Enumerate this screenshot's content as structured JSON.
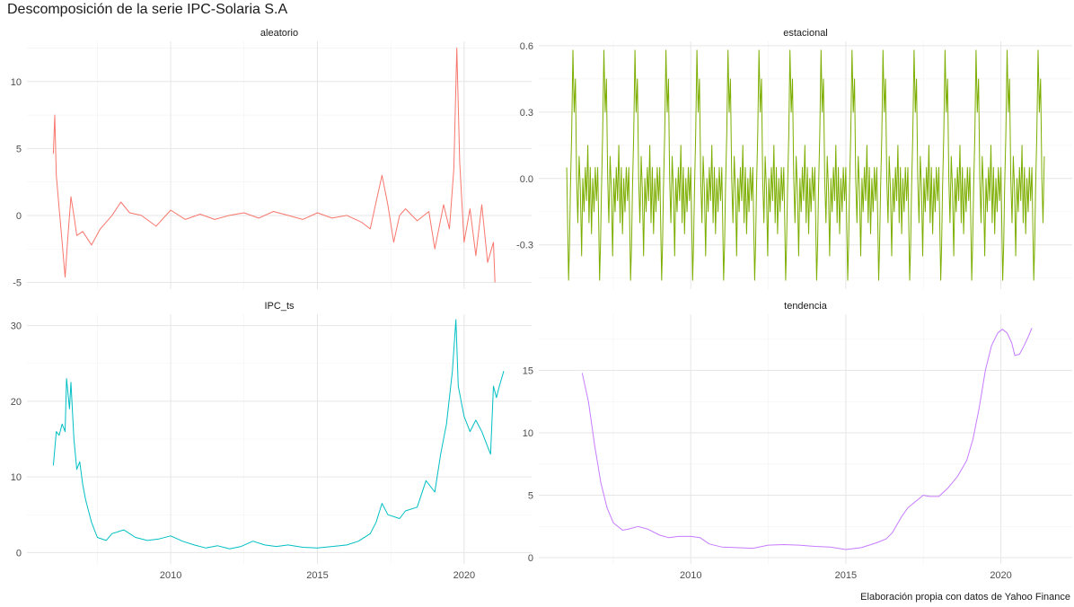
{
  "chart_data": {
    "title": "Descomposición de la serie IPC-Solaria S.A",
    "caption": "Elaboración propia con datos de Yahoo Finance",
    "type": "line",
    "grid": true,
    "x_ticks": [
      "2010",
      "2015",
      "2020"
    ],
    "panels": [
      {
        "name": "aleatorio",
        "color": "#F8766D",
        "ylim": [
          -5.5,
          13
        ],
        "y_ticks": [
          -5,
          0,
          5,
          10
        ],
        "y_tick_labels": [
          "-5",
          "0",
          "5",
          "10"
        ],
        "points": [
          [
            2006.0,
            4.6
          ],
          [
            2006.05,
            7.5
          ],
          [
            2006.1,
            3.0
          ],
          [
            2006.2,
            0.5
          ],
          [
            2006.3,
            -2.0
          ],
          [
            2006.4,
            -4.6
          ],
          [
            2006.5,
            -1.5
          ],
          [
            2006.6,
            1.4
          ],
          [
            2006.7,
            0.0
          ],
          [
            2006.8,
            -1.5
          ],
          [
            2007.0,
            -1.2
          ],
          [
            2007.3,
            -2.2
          ],
          [
            2007.6,
            -1.0
          ],
          [
            2008.0,
            0.0
          ],
          [
            2008.3,
            1.0
          ],
          [
            2008.6,
            0.2
          ],
          [
            2009.0,
            0.0
          ],
          [
            2009.5,
            -0.8
          ],
          [
            2010.0,
            0.4
          ],
          [
            2010.5,
            -0.3
          ],
          [
            2011.0,
            0.1
          ],
          [
            2011.5,
            -0.3
          ],
          [
            2012.0,
            0.0
          ],
          [
            2012.5,
            0.2
          ],
          [
            2013.0,
            -0.2
          ],
          [
            2013.5,
            0.3
          ],
          [
            2014.0,
            0.0
          ],
          [
            2014.5,
            -0.3
          ],
          [
            2015.0,
            0.2
          ],
          [
            2015.5,
            -0.2
          ],
          [
            2016.0,
            0.0
          ],
          [
            2016.5,
            -0.5
          ],
          [
            2016.8,
            -1.0
          ],
          [
            2017.0,
            1.0
          ],
          [
            2017.2,
            3.0
          ],
          [
            2017.4,
            0.8
          ],
          [
            2017.6,
            -2.0
          ],
          [
            2017.8,
            0.0
          ],
          [
            2018.0,
            0.5
          ],
          [
            2018.4,
            -0.4
          ],
          [
            2018.8,
            0.3
          ],
          [
            2019.0,
            -2.5
          ],
          [
            2019.3,
            0.8
          ],
          [
            2019.5,
            -1.0
          ],
          [
            2019.65,
            3.5
          ],
          [
            2019.75,
            12.5
          ],
          [
            2019.85,
            4.0
          ],
          [
            2020.0,
            -2.0
          ],
          [
            2020.2,
            0.5
          ],
          [
            2020.4,
            -3.0
          ],
          [
            2020.6,
            0.8
          ],
          [
            2020.8,
            -3.5
          ],
          [
            2021.0,
            -2.0
          ],
          [
            2021.05,
            -5.0
          ]
        ]
      },
      {
        "name": "estacional",
        "color": "#7CAE00",
        "ylim": [
          -0.5,
          0.62
        ],
        "y_ticks": [
          -0.3,
          0.0,
          0.3,
          0.6
        ],
        "y_tick_labels": [
          "-0.3",
          "0.0",
          "0.3",
          "0.6"
        ],
        "period": 1.0,
        "x_range": [
          2006.0,
          2021.4
        ],
        "cycle_points": [
          [
            0.0,
            0.05
          ],
          [
            0.03,
            -0.2
          ],
          [
            0.06,
            -0.46
          ],
          [
            0.09,
            -0.3
          ],
          [
            0.12,
            -0.05
          ],
          [
            0.16,
            0.2
          ],
          [
            0.2,
            0.58
          ],
          [
            0.24,
            0.3
          ],
          [
            0.28,
            0.45
          ],
          [
            0.32,
            0.0
          ],
          [
            0.36,
            -0.2
          ],
          [
            0.4,
            0.1
          ],
          [
            0.44,
            -0.05
          ],
          [
            0.48,
            -0.35
          ],
          [
            0.52,
            0.0
          ],
          [
            0.56,
            -0.15
          ],
          [
            0.6,
            0.05
          ],
          [
            0.64,
            -0.1
          ],
          [
            0.68,
            0.15
          ],
          [
            0.72,
            -0.2
          ],
          [
            0.76,
            0.05
          ],
          [
            0.8,
            -0.25
          ],
          [
            0.84,
            0.0
          ],
          [
            0.88,
            -0.15
          ],
          [
            0.92,
            0.05
          ],
          [
            0.96,
            -0.1
          ],
          [
            1.0,
            0.05
          ]
        ]
      },
      {
        "name": "IPC_ts",
        "color": "#00BFC4",
        "ylim": [
          -1.5,
          31.5
        ],
        "y_ticks": [
          0,
          10,
          20,
          30
        ],
        "y_tick_labels": [
          "0",
          "10",
          "20",
          "30"
        ],
        "points": [
          [
            2006.0,
            11.5
          ],
          [
            2006.1,
            16.0
          ],
          [
            2006.2,
            15.5
          ],
          [
            2006.3,
            17.0
          ],
          [
            2006.4,
            16.0
          ],
          [
            2006.45,
            23.0
          ],
          [
            2006.55,
            19.0
          ],
          [
            2006.6,
            22.5
          ],
          [
            2006.7,
            15.0
          ],
          [
            2006.8,
            11.0
          ],
          [
            2006.9,
            12.0
          ],
          [
            2007.0,
            9.0
          ],
          [
            2007.1,
            7.0
          ],
          [
            2007.3,
            4.0
          ],
          [
            2007.5,
            2.0
          ],
          [
            2007.8,
            1.6
          ],
          [
            2008.0,
            2.5
          ],
          [
            2008.4,
            3.0
          ],
          [
            2008.8,
            2.0
          ],
          [
            2009.2,
            1.6
          ],
          [
            2009.6,
            1.8
          ],
          [
            2010.0,
            2.2
          ],
          [
            2010.4,
            1.5
          ],
          [
            2010.8,
            1.0
          ],
          [
            2011.2,
            0.6
          ],
          [
            2011.6,
            0.9
          ],
          [
            2012.0,
            0.5
          ],
          [
            2012.4,
            0.8
          ],
          [
            2012.8,
            1.5
          ],
          [
            2013.2,
            1.0
          ],
          [
            2013.6,
            0.8
          ],
          [
            2014.0,
            1.0
          ],
          [
            2014.5,
            0.7
          ],
          [
            2015.0,
            0.6
          ],
          [
            2015.5,
            0.8
          ],
          [
            2016.0,
            1.0
          ],
          [
            2016.4,
            1.5
          ],
          [
            2016.8,
            2.5
          ],
          [
            2017.0,
            4.0
          ],
          [
            2017.2,
            6.5
          ],
          [
            2017.4,
            5.0
          ],
          [
            2017.8,
            4.5
          ],
          [
            2018.0,
            5.5
          ],
          [
            2018.4,
            6.0
          ],
          [
            2018.7,
            9.5
          ],
          [
            2019.0,
            8.0
          ],
          [
            2019.2,
            13.0
          ],
          [
            2019.4,
            17.0
          ],
          [
            2019.6,
            24.0
          ],
          [
            2019.72,
            30.8
          ],
          [
            2019.8,
            22.0
          ],
          [
            2020.0,
            18.0
          ],
          [
            2020.2,
            16.0
          ],
          [
            2020.4,
            17.5
          ],
          [
            2020.6,
            16.0
          ],
          [
            2020.8,
            14.0
          ],
          [
            2020.9,
            13.0
          ],
          [
            2021.0,
            22.0
          ],
          [
            2021.1,
            20.5
          ],
          [
            2021.2,
            22.0
          ],
          [
            2021.35,
            24.0
          ]
        ]
      },
      {
        "name": "tendencia",
        "color": "#C77CFF",
        "ylim": [
          -0.5,
          19.5
        ],
        "y_ticks": [
          0,
          5,
          10,
          15
        ],
        "y_tick_labels": [
          "0",
          "5",
          "10",
          "15"
        ],
        "points": [
          [
            2006.5,
            14.8
          ],
          [
            2006.7,
            12.5
          ],
          [
            2006.9,
            9.0
          ],
          [
            2007.1,
            6.0
          ],
          [
            2007.3,
            4.0
          ],
          [
            2007.5,
            2.8
          ],
          [
            2007.8,
            2.2
          ],
          [
            2008.0,
            2.3
          ],
          [
            2008.3,
            2.5
          ],
          [
            2008.6,
            2.3
          ],
          [
            2009.0,
            1.8
          ],
          [
            2009.3,
            1.6
          ],
          [
            2009.6,
            1.7
          ],
          [
            2010.0,
            1.7
          ],
          [
            2010.3,
            1.6
          ],
          [
            2010.6,
            1.1
          ],
          [
            2011.0,
            0.85
          ],
          [
            2011.5,
            0.8
          ],
          [
            2012.0,
            0.75
          ],
          [
            2012.5,
            1.0
          ],
          [
            2013.0,
            1.05
          ],
          [
            2013.5,
            1.0
          ],
          [
            2014.0,
            0.9
          ],
          [
            2014.5,
            0.85
          ],
          [
            2015.0,
            0.65
          ],
          [
            2015.5,
            0.8
          ],
          [
            2016.0,
            1.2
          ],
          [
            2016.3,
            1.5
          ],
          [
            2016.5,
            2.0
          ],
          [
            2016.8,
            3.3
          ],
          [
            2017.0,
            4.0
          ],
          [
            2017.3,
            4.6
          ],
          [
            2017.5,
            5.0
          ],
          [
            2017.7,
            4.9
          ],
          [
            2018.0,
            4.9
          ],
          [
            2018.3,
            5.6
          ],
          [
            2018.6,
            6.5
          ],
          [
            2018.9,
            7.8
          ],
          [
            2019.1,
            9.5
          ],
          [
            2019.3,
            12.0
          ],
          [
            2019.5,
            15.0
          ],
          [
            2019.7,
            17.0
          ],
          [
            2019.9,
            18.0
          ],
          [
            2020.05,
            18.3
          ],
          [
            2020.2,
            18.0
          ],
          [
            2020.35,
            17.2
          ],
          [
            2020.45,
            16.2
          ],
          [
            2020.6,
            16.3
          ],
          [
            2020.75,
            17.0
          ],
          [
            2020.9,
            17.8
          ],
          [
            2021.0,
            18.4
          ]
        ]
      }
    ]
  }
}
